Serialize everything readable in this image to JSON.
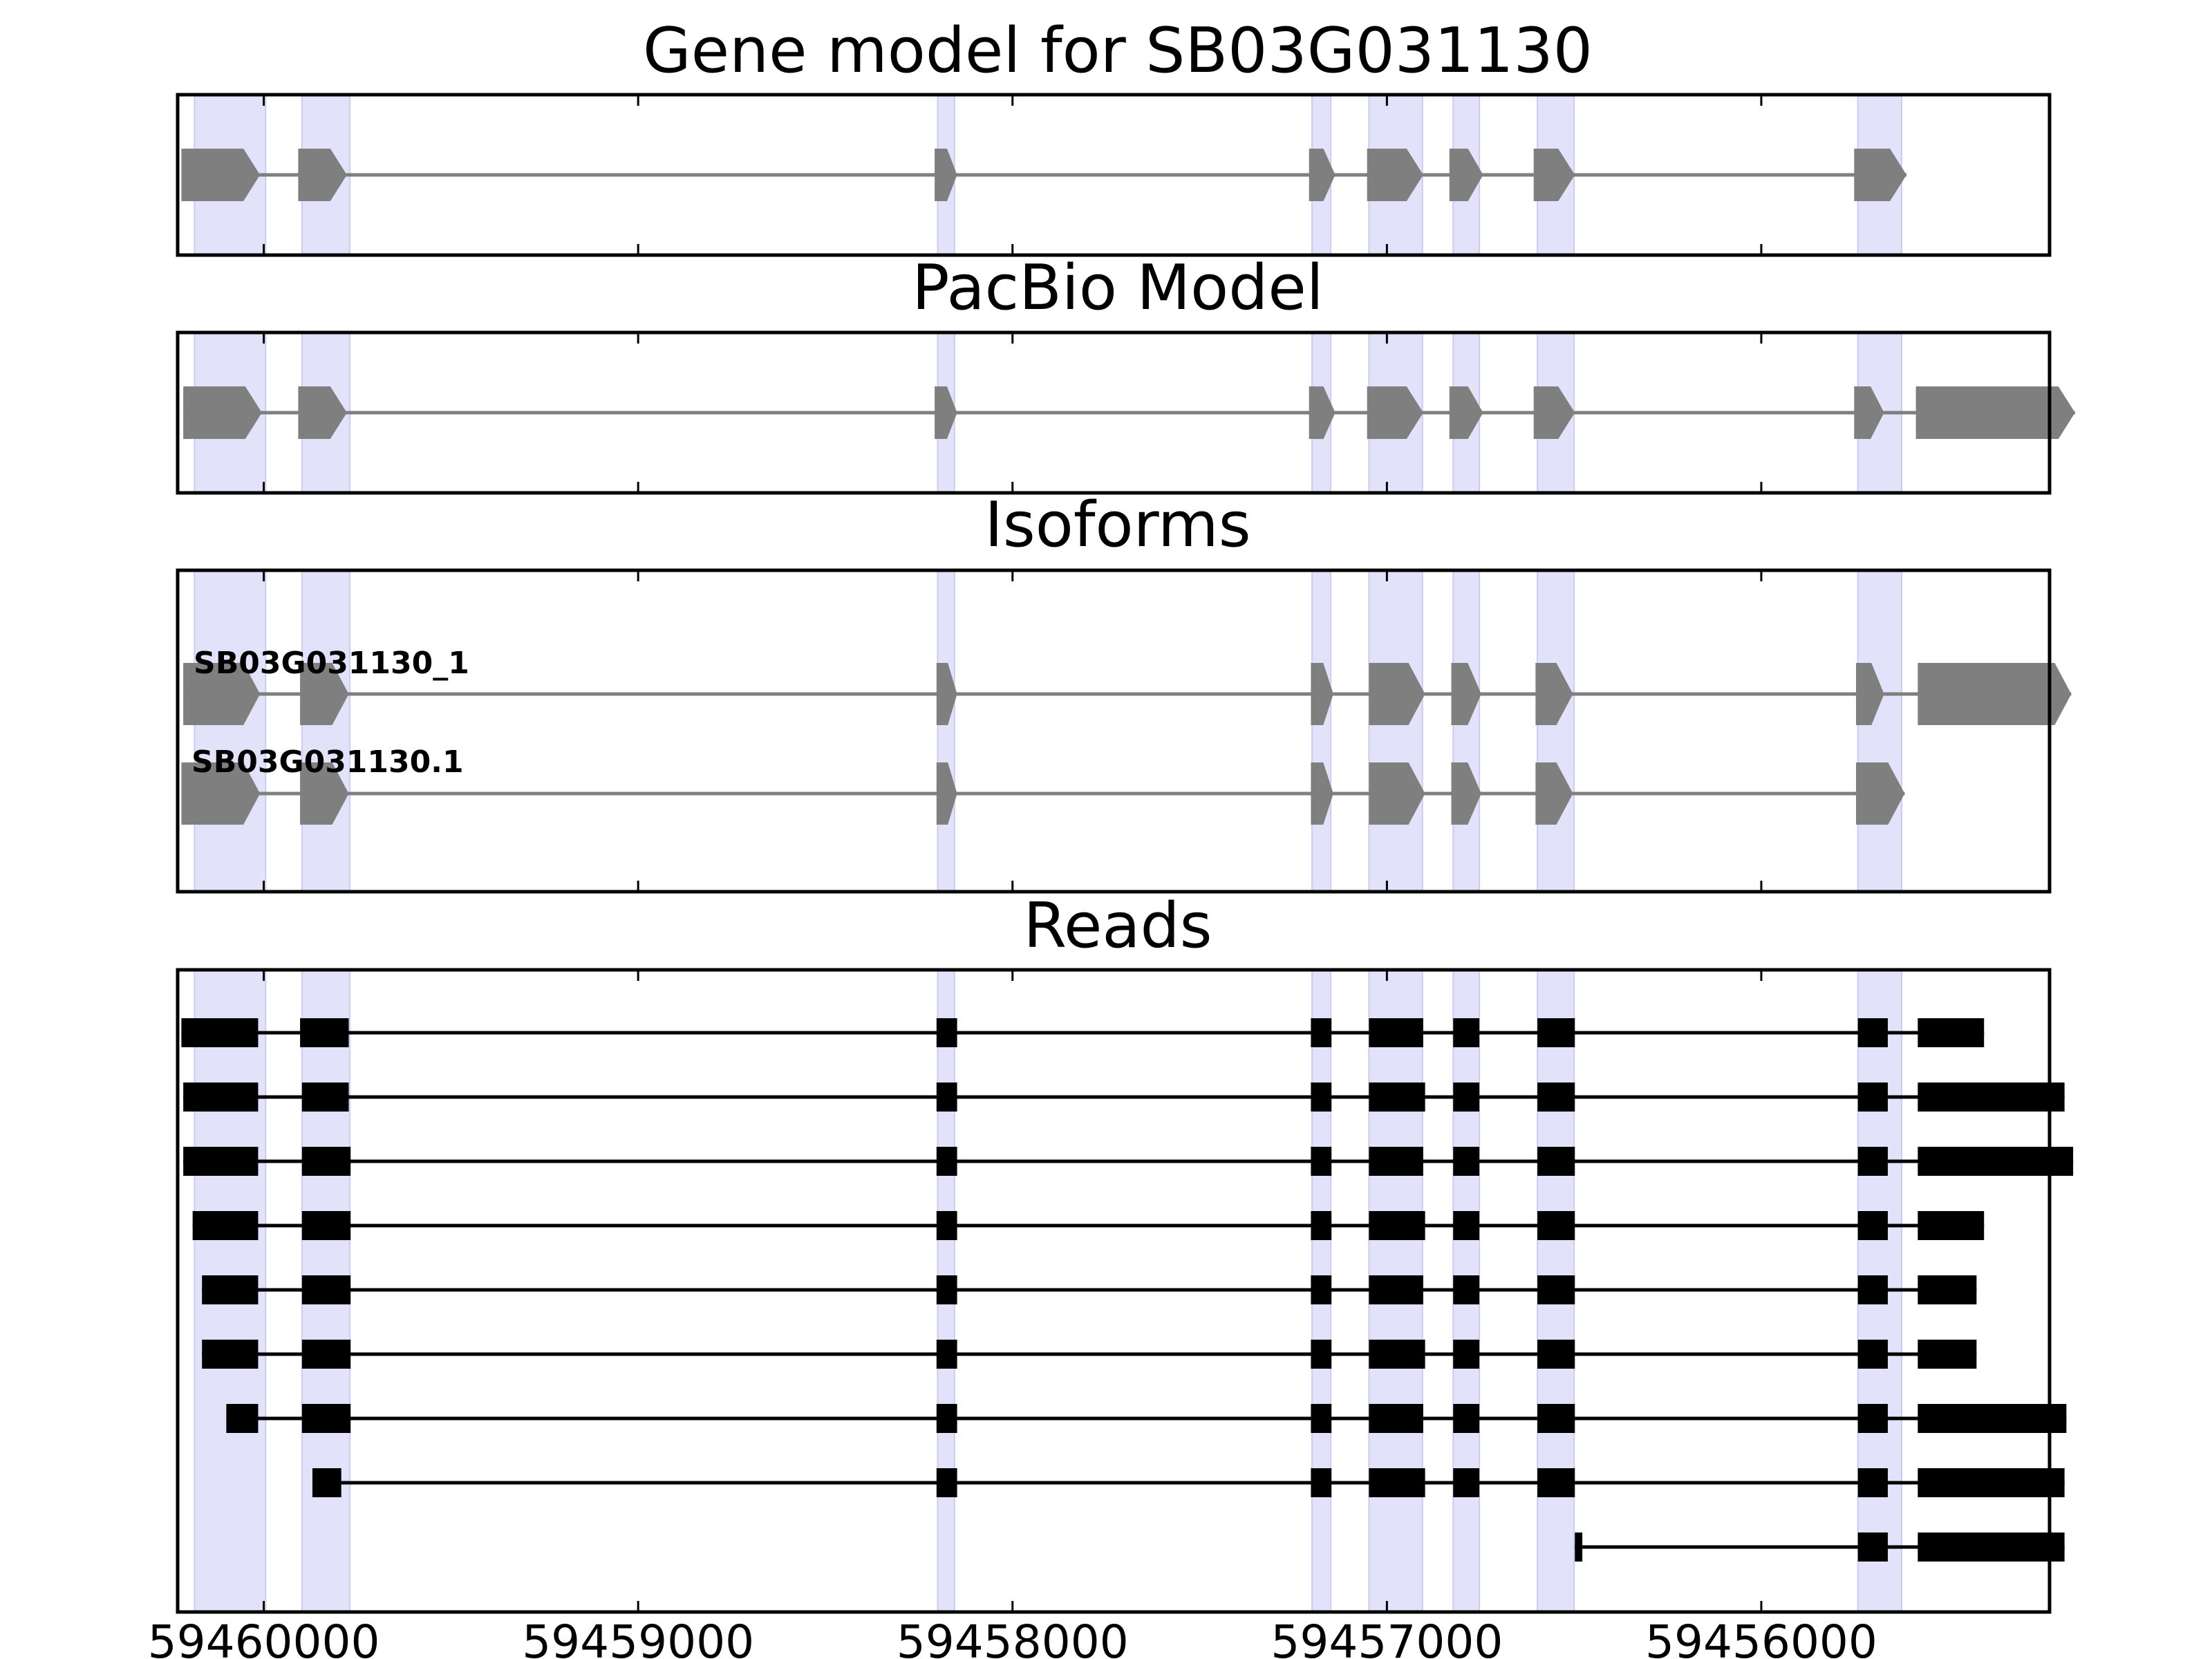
{
  "chart_data": {
    "type": "gene_model",
    "x_axis": {
      "reversed": true,
      "range": [
        59460230,
        59455230
      ],
      "ticks": [
        59460000,
        59459000,
        59458000,
        59457000,
        59456000
      ],
      "tick_labels": [
        "59460000",
        "59459000",
        "59458000",
        "59457000",
        "59456000"
      ]
    },
    "highlight_regions": [
      [
        59460185,
        59459995
      ],
      [
        59459898,
        59459770
      ],
      [
        59458200,
        59458155
      ],
      [
        59457200,
        59457150
      ],
      [
        59457048,
        59456905
      ],
      [
        59456823,
        59456753
      ],
      [
        59456598,
        59456500
      ],
      [
        59455742,
        59455625
      ]
    ],
    "panels": [
      {
        "title": "Gene model for SB03G031130",
        "tracks": [
          {
            "label": "",
            "exons": [
              [
                59460220,
                59460010
              ],
              [
                59459908,
                59459778
              ],
              [
                59458208,
                59458148
              ],
              [
                59457208,
                59457138
              ],
              [
                59457053,
                59456903
              ],
              [
                59456833,
                59456743
              ],
              [
                59456608,
                59456498
              ],
              [
                59455752,
                59455612
              ]
            ]
          }
        ]
      },
      {
        "title": "PacBio Model",
        "tracks": [
          {
            "label": "",
            "exons": [
              [
                59460215,
                59460005
              ],
              [
                59459908,
                59459778
              ],
              [
                59458208,
                59458148
              ],
              [
                59457208,
                59457138
              ],
              [
                59457053,
                59456903
              ],
              [
                59456833,
                59456743
              ],
              [
                59456608,
                59456498
              ],
              [
                59455752,
                59455672
              ],
              [
                59455587,
                59455162
              ]
            ]
          }
        ]
      },
      {
        "title": "Isoforms",
        "tracks": [
          {
            "label": "SB03G031130_1",
            "exons": [
              [
                59460215,
                59460010
              ],
              [
                59459903,
                59459773
              ],
              [
                59458203,
                59458148
              ],
              [
                59457203,
                59457143
              ],
              [
                59457048,
                59456898
              ],
              [
                59456828,
                59456748
              ],
              [
                59456603,
                59456503
              ],
              [
                59455747,
                59455672
              ],
              [
                59455582,
                59455172
              ]
            ]
          },
          {
            "label": "SB03G031130.1",
            "exons": [
              [
                59460220,
                59460010
              ],
              [
                59459903,
                59459773
              ],
              [
                59458203,
                59458148
              ],
              [
                59457203,
                59457143
              ],
              [
                59457048,
                59456898
              ],
              [
                59456828,
                59456748
              ],
              [
                59456603,
                59456503
              ],
              [
                59455747,
                59455617
              ]
            ]
          }
        ]
      },
      {
        "title": "Reads",
        "tracks": [
          {
            "exons": [
              [
                59460220,
                59460015
              ],
              [
                59459903,
                59459773
              ],
              [
                59458203,
                59458148
              ],
              [
                59457203,
                59457148
              ],
              [
                59457048,
                59456903
              ],
              [
                59456823,
                59456753
              ],
              [
                59456598,
                59456498
              ],
              [
                59455742,
                59455662
              ],
              [
                59455582,
                59455405
              ]
            ]
          },
          {
            "exons": [
              [
                59460215,
                59460015
              ],
              [
                59459898,
                59459773
              ],
              [
                59458203,
                59458148
              ],
              [
                59457203,
                59457148
              ],
              [
                59457048,
                59456898
              ],
              [
                59456823,
                59456753
              ],
              [
                59456598,
                59456498
              ],
              [
                59455742,
                59455662
              ],
              [
                59455582,
                59455190
              ]
            ]
          },
          {
            "exons": [
              [
                59460215,
                59460015
              ],
              [
                59459898,
                59459768
              ],
              [
                59458203,
                59458148
              ],
              [
                59457203,
                59457148
              ],
              [
                59457048,
                59456903
              ],
              [
                59456823,
                59456753
              ],
              [
                59456598,
                59456498
              ],
              [
                59455742,
                59455662
              ],
              [
                59455582,
                59455167
              ]
            ]
          },
          {
            "exons": [
              [
                59460190,
                59460015
              ],
              [
                59459898,
                59459768
              ],
              [
                59458203,
                59458148
              ],
              [
                59457203,
                59457148
              ],
              [
                59457048,
                59456898
              ],
              [
                59456823,
                59456753
              ],
              [
                59456598,
                59456498
              ],
              [
                59455742,
                59455662
              ],
              [
                59455582,
                59455405
              ]
            ]
          },
          {
            "exons": [
              [
                59460165,
                59460015
              ],
              [
                59459898,
                59459768
              ],
              [
                59458203,
                59458148
              ],
              [
                59457203,
                59457148
              ],
              [
                59457048,
                59456903
              ],
              [
                59456823,
                59456753
              ],
              [
                59456598,
                59456498
              ],
              [
                59455742,
                59455662
              ],
              [
                59455582,
                59455425
              ]
            ]
          },
          {
            "exons": [
              [
                59460165,
                59460015
              ],
              [
                59459898,
                59459768
              ],
              [
                59458203,
                59458148
              ],
              [
                59457203,
                59457148
              ],
              [
                59457048,
                59456898
              ],
              [
                59456823,
                59456753
              ],
              [
                59456598,
                59456498
              ],
              [
                59455742,
                59455662
              ],
              [
                59455582,
                59455425
              ]
            ]
          },
          {
            "exons": [
              [
                59460100,
                59460015
              ],
              [
                59459898,
                59459768
              ],
              [
                59458203,
                59458148
              ],
              [
                59457203,
                59457148
              ],
              [
                59457048,
                59456903
              ],
              [
                59456823,
                59456753
              ],
              [
                59456598,
                59456498
              ],
              [
                59455742,
                59455662
              ],
              [
                59455582,
                59455185
              ]
            ]
          },
          {
            "exons": [
              [
                59459870,
                59459793
              ],
              [
                59458203,
                59458148
              ],
              [
                59457203,
                59457148
              ],
              [
                59457048,
                59456898
              ],
              [
                59456823,
                59456753
              ],
              [
                59456598,
                59456498
              ],
              [
                59455742,
                59455662
              ],
              [
                59455582,
                59455190
              ]
            ]
          },
          {
            "exons": [
              [
                59456498,
                59456478
              ],
              [
                59455742,
                59455662
              ],
              [
                59455582,
                59455190
              ]
            ]
          }
        ]
      }
    ]
  },
  "colors": {
    "highlight": "#e2e2fa",
    "highlight_edge": "#ccccee",
    "model_fill": "#7f7f7f",
    "model_line": "#7f7f7f",
    "read_fill": "#000000",
    "frame": "#000000"
  }
}
